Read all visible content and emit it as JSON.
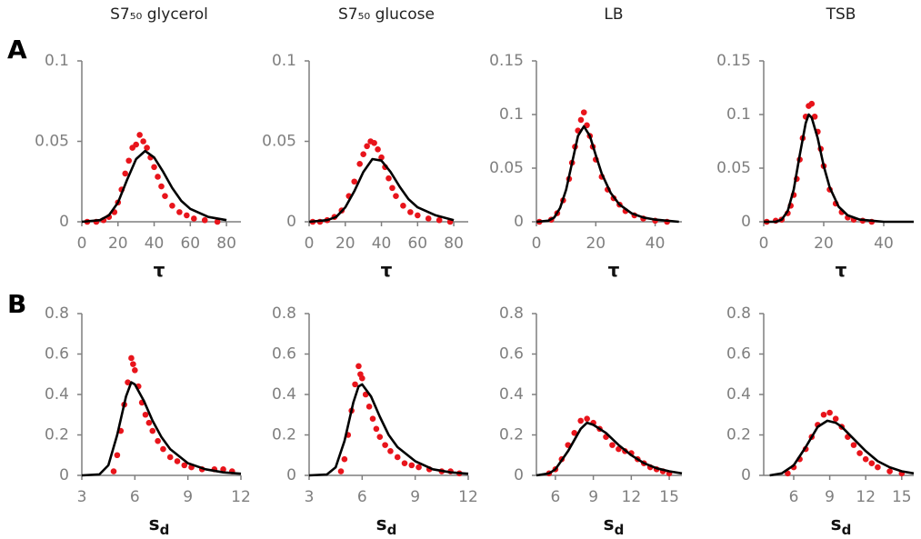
{
  "panel_labels": [
    "A",
    "B"
  ],
  "chart_data": [
    {
      "type": "scatter",
      "title": "S7₅₀ glycerol",
      "xlabel": "τ",
      "xlim": [
        0,
        88
      ],
      "ylim": [
        0,
        0.1
      ],
      "xticks": [
        0,
        20,
        40,
        60,
        80
      ],
      "yticks": [
        0,
        0.05,
        0.1
      ],
      "series": [
        {
          "type": "scatter",
          "color": "#e8141b",
          "x": [
            3,
            8,
            12,
            15,
            18,
            20,
            22,
            24,
            26,
            28,
            30,
            32,
            34,
            36,
            38,
            40,
            42,
            44,
            46,
            50,
            54,
            58,
            62,
            68,
            75
          ],
          "values": [
            0,
            0,
            0.001,
            0.003,
            0.006,
            0.012,
            0.02,
            0.03,
            0.038,
            0.046,
            0.048,
            0.054,
            0.05,
            0.046,
            0.04,
            0.034,
            0.028,
            0.022,
            0.016,
            0.01,
            0.006,
            0.004,
            0.002,
            0.001,
            0
          ]
        },
        {
          "type": "line",
          "color": "#000000",
          "x": [
            0,
            10,
            15,
            20,
            25,
            30,
            35,
            40,
            45,
            50,
            55,
            60,
            70,
            80
          ],
          "values": [
            0,
            0.001,
            0.004,
            0.012,
            0.026,
            0.039,
            0.044,
            0.04,
            0.031,
            0.021,
            0.013,
            0.008,
            0.003,
            0.001
          ]
        }
      ]
    },
    {
      "type": "scatter",
      "title": "S7₅₀ glucose",
      "xlabel": "τ",
      "xlim": [
        0,
        88
      ],
      "ylim": [
        0,
        0.1
      ],
      "xticks": [
        0,
        20,
        40,
        60,
        80
      ],
      "yticks": [
        0,
        0.05,
        0.1
      ],
      "series": [
        {
          "type": "scatter",
          "color": "#e8141b",
          "x": [
            2,
            6,
            10,
            14,
            18,
            22,
            25,
            28,
            30,
            32,
            34,
            36,
            38,
            40,
            42,
            44,
            46,
            48,
            52,
            56,
            60,
            66,
            72,
            78
          ],
          "values": [
            0,
            0,
            0.001,
            0.003,
            0.007,
            0.016,
            0.025,
            0.036,
            0.042,
            0.047,
            0.05,
            0.049,
            0.045,
            0.04,
            0.034,
            0.027,
            0.021,
            0.016,
            0.01,
            0.006,
            0.004,
            0.002,
            0.001,
            0
          ]
        },
        {
          "type": "line",
          "color": "#000000",
          "x": [
            0,
            10,
            15,
            20,
            25,
            30,
            35,
            40,
            45,
            50,
            55,
            60,
            70,
            80
          ],
          "values": [
            0,
            0.001,
            0.003,
            0.009,
            0.019,
            0.031,
            0.039,
            0.038,
            0.031,
            0.022,
            0.014,
            0.009,
            0.004,
            0.001
          ]
        }
      ]
    },
    {
      "type": "scatter",
      "title": "LB",
      "xlabel": "τ",
      "xlim": [
        0,
        49
      ],
      "ylim": [
        0,
        0.15
      ],
      "xticks": [
        0,
        20,
        40
      ],
      "yticks": [
        0,
        0.05,
        0.1,
        0.15
      ],
      "series": [
        {
          "type": "scatter",
          "color": "#e8141b",
          "x": [
            1,
            5,
            7,
            9,
            11,
            12,
            13,
            14,
            15,
            16,
            17,
            18,
            19,
            20,
            22,
            24,
            26,
            28,
            30,
            33,
            36,
            40,
            44
          ],
          "values": [
            0,
            0.002,
            0.008,
            0.02,
            0.04,
            0.055,
            0.07,
            0.085,
            0.095,
            0.102,
            0.09,
            0.08,
            0.07,
            0.058,
            0.042,
            0.03,
            0.022,
            0.016,
            0.01,
            0.006,
            0.003,
            0.001,
            0
          ]
        },
        {
          "type": "line",
          "color": "#000000",
          "x": [
            0,
            4,
            6,
            8,
            10,
            12,
            14,
            16,
            18,
            20,
            22,
            25,
            28,
            32,
            36,
            40,
            48
          ],
          "values": [
            0,
            0.001,
            0.004,
            0.013,
            0.03,
            0.055,
            0.08,
            0.089,
            0.08,
            0.062,
            0.045,
            0.027,
            0.016,
            0.008,
            0.004,
            0.002,
            0
          ]
        }
      ]
    },
    {
      "type": "scatter",
      "title": "TSB",
      "xlabel": "τ",
      "xlim": [
        0,
        50
      ],
      "ylim": [
        0,
        0.15
      ],
      "xticks": [
        0,
        20,
        40
      ],
      "yticks": [
        0,
        0.05,
        0.1,
        0.15
      ],
      "series": [
        {
          "type": "scatter",
          "color": "#e8141b",
          "x": [
            1,
            4,
            6,
            8,
            9,
            10,
            11,
            12,
            13,
            14,
            15,
            16,
            17,
            18,
            19,
            20,
            22,
            24,
            26,
            28,
            30,
            33,
            36
          ],
          "values": [
            0,
            0.001,
            0.002,
            0.008,
            0.015,
            0.025,
            0.04,
            0.058,
            0.078,
            0.098,
            0.108,
            0.11,
            0.098,
            0.084,
            0.068,
            0.052,
            0.03,
            0.017,
            0.009,
            0.004,
            0.002,
            0.001,
            0
          ]
        },
        {
          "type": "line",
          "color": "#000000",
          "x": [
            0,
            4,
            6,
            8,
            10,
            12,
            14,
            15,
            16,
            18,
            20,
            22,
            25,
            28,
            32,
            36,
            40,
            50
          ],
          "values": [
            0,
            0,
            0.002,
            0.01,
            0.03,
            0.062,
            0.092,
            0.1,
            0.097,
            0.078,
            0.052,
            0.032,
            0.014,
            0.006,
            0.002,
            0.001,
            0,
            0
          ]
        }
      ]
    },
    {
      "type": "scatter",
      "xlabel": "s",
      "xlabel_subscript": "d",
      "xlim": [
        3,
        12
      ],
      "ylim": [
        0,
        0.8
      ],
      "xticks": [
        3,
        6,
        9,
        12
      ],
      "yticks": [
        0,
        0.2,
        0.4,
        0.6,
        0.8
      ],
      "series": [
        {
          "type": "scatter",
          "color": "#e8141b",
          "x": [
            4.8,
            5,
            5.2,
            5.4,
            5.6,
            5.8,
            5.9,
            6,
            6.2,
            6.4,
            6.6,
            6.8,
            7,
            7.3,
            7.6,
            8,
            8.4,
            8.8,
            9.2,
            9.8,
            10.5,
            11,
            11.5
          ],
          "values": [
            0.02,
            0.1,
            0.22,
            0.35,
            0.46,
            0.58,
            0.55,
            0.52,
            0.44,
            0.36,
            0.3,
            0.26,
            0.22,
            0.17,
            0.13,
            0.09,
            0.07,
            0.05,
            0.04,
            0.03,
            0.03,
            0.03,
            0.02
          ]
        },
        {
          "type": "line",
          "color": "#000000",
          "x": [
            3,
            4,
            4.5,
            5,
            5.5,
            5.8,
            6,
            6.5,
            7,
            7.5,
            8,
            9,
            10,
            11,
            12
          ],
          "values": [
            0,
            0.005,
            0.05,
            0.2,
            0.39,
            0.46,
            0.45,
            0.37,
            0.27,
            0.19,
            0.13,
            0.06,
            0.03,
            0.015,
            0.008
          ]
        }
      ]
    },
    {
      "type": "scatter",
      "xlabel": "s",
      "xlabel_subscript": "d",
      "xlim": [
        3,
        12
      ],
      "ylim": [
        0,
        0.8
      ],
      "xticks": [
        3,
        6,
        9,
        12
      ],
      "yticks": [
        0,
        0.2,
        0.4,
        0.6,
        0.8
      ],
      "series": [
        {
          "type": "scatter",
          "color": "#e8141b",
          "x": [
            4.8,
            5,
            5.2,
            5.4,
            5.6,
            5.8,
            5.9,
            6,
            6.2,
            6.4,
            6.6,
            6.8,
            7,
            7.3,
            7.6,
            8,
            8.4,
            8.8,
            9.2,
            9.8,
            10.5,
            11,
            11.5
          ],
          "values": [
            0.02,
            0.08,
            0.2,
            0.32,
            0.45,
            0.54,
            0.5,
            0.48,
            0.4,
            0.34,
            0.28,
            0.23,
            0.19,
            0.15,
            0.12,
            0.09,
            0.06,
            0.05,
            0.04,
            0.03,
            0.02,
            0.02,
            0.01
          ]
        },
        {
          "type": "line",
          "color": "#000000",
          "x": [
            3,
            4,
            4.5,
            5,
            5.5,
            5.8,
            6,
            6.5,
            7,
            7.5,
            8,
            9,
            10,
            11,
            12
          ],
          "values": [
            0,
            0.004,
            0.04,
            0.17,
            0.36,
            0.44,
            0.45,
            0.39,
            0.29,
            0.2,
            0.14,
            0.07,
            0.03,
            0.015,
            0.008
          ]
        }
      ]
    },
    {
      "type": "scatter",
      "xlabel": "s",
      "xlabel_subscript": "d",
      "xlim": [
        4.5,
        16
      ],
      "ylim": [
        0,
        0.8
      ],
      "xticks": [
        6,
        9,
        12,
        15
      ],
      "yticks": [
        0,
        0.2,
        0.4,
        0.6,
        0.8
      ],
      "series": [
        {
          "type": "scatter",
          "color": "#e8141b",
          "x": [
            5.5,
            6,
            6.5,
            7,
            7.5,
            8,
            8.5,
            9,
            9.5,
            10,
            10.5,
            11,
            11.5,
            12,
            12.5,
            13,
            13.5,
            14,
            14.5,
            15
          ],
          "values": [
            0.01,
            0.03,
            0.08,
            0.15,
            0.21,
            0.27,
            0.28,
            0.26,
            0.23,
            0.19,
            0.15,
            0.13,
            0.12,
            0.11,
            0.08,
            0.06,
            0.04,
            0.03,
            0.02,
            0.01
          ]
        },
        {
          "type": "line",
          "color": "#000000",
          "x": [
            4.5,
            5.5,
            6,
            7,
            8,
            8.5,
            9,
            10,
            11,
            12,
            13,
            14,
            15,
            16
          ],
          "values": [
            0,
            0.01,
            0.03,
            0.12,
            0.23,
            0.26,
            0.25,
            0.21,
            0.15,
            0.1,
            0.06,
            0.035,
            0.02,
            0.01
          ]
        }
      ]
    },
    {
      "type": "scatter",
      "xlabel": "s",
      "xlabel_subscript": "d",
      "xlim": [
        3.5,
        16
      ],
      "ylim": [
        0,
        0.8
      ],
      "xticks": [
        6,
        9,
        12,
        15
      ],
      "yticks": [
        0,
        0.2,
        0.4,
        0.6,
        0.8
      ],
      "series": [
        {
          "type": "scatter",
          "color": "#e8141b",
          "x": [
            5.5,
            6,
            6.5,
            7,
            7.5,
            8,
            8.5,
            9,
            9.5,
            10,
            10.5,
            11,
            11.5,
            12,
            12.5,
            13,
            14,
            15
          ],
          "values": [
            0.01,
            0.04,
            0.08,
            0.13,
            0.19,
            0.25,
            0.3,
            0.31,
            0.28,
            0.24,
            0.19,
            0.15,
            0.11,
            0.08,
            0.06,
            0.04,
            0.02,
            0.01
          ]
        },
        {
          "type": "line",
          "color": "#000000",
          "x": [
            4,
            5,
            6,
            7,
            8,
            8.8,
            9.5,
            10,
            11,
            12,
            13,
            14,
            15,
            16
          ],
          "values": [
            0,
            0.01,
            0.05,
            0.14,
            0.24,
            0.27,
            0.26,
            0.24,
            0.18,
            0.12,
            0.07,
            0.04,
            0.02,
            0.01
          ]
        }
      ]
    }
  ]
}
